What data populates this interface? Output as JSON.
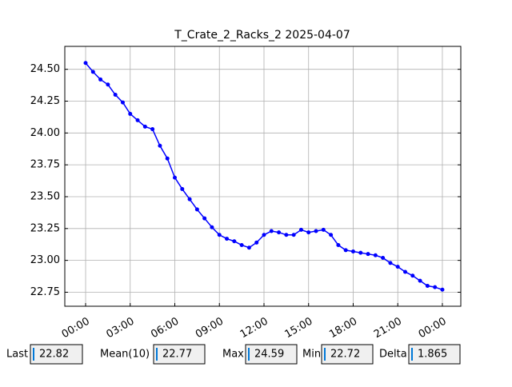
{
  "chart_data": {
    "type": "line",
    "title": "T_Crate_2_Racks_2 2025-04-07",
    "x": [
      0,
      0.5,
      1,
      1.5,
      2,
      2.5,
      3,
      3.5,
      4,
      4.5,
      5,
      5.5,
      6,
      6.5,
      7,
      7.5,
      8,
      8.5,
      9,
      9.5,
      10,
      10.5,
      11,
      11.5,
      12,
      12.5,
      13,
      13.5,
      14,
      14.5,
      15,
      15.5,
      16,
      16.5,
      17,
      17.5,
      18,
      18.5,
      19,
      19.5,
      20,
      20.5,
      21,
      21.5,
      22,
      22.5,
      23,
      23.5,
      24
    ],
    "series": [
      {
        "color": "#0000ff",
        "values": [
          24.55,
          24.48,
          24.42,
          24.38,
          24.3,
          24.24,
          24.15,
          24.1,
          24.05,
          24.03,
          23.9,
          23.8,
          23.65,
          23.56,
          23.48,
          23.4,
          23.33,
          23.26,
          23.2,
          23.17,
          23.15,
          23.12,
          23.1,
          23.14,
          23.2,
          23.23,
          23.22,
          23.2,
          23.2,
          23.24,
          23.22,
          23.23,
          23.24,
          23.2,
          23.12,
          23.08,
          23.07,
          23.06,
          23.05,
          23.04,
          23.02,
          22.98,
          22.95,
          22.91,
          22.88,
          22.84,
          22.8,
          22.79,
          22.77
        ]
      }
    ],
    "xlim": [
      -1.4,
      25.24
    ],
    "xticks": [
      {
        "value": 0,
        "label": "00:00"
      },
      {
        "value": 3,
        "label": "03:00"
      },
      {
        "value": 6,
        "label": "06:00"
      },
      {
        "value": 9,
        "label": "09:00"
      },
      {
        "value": 12,
        "label": "12:00"
      },
      {
        "value": 15,
        "label": "15:00"
      },
      {
        "value": 18,
        "label": "18:00"
      },
      {
        "value": 21,
        "label": "21:00"
      },
      {
        "value": 24,
        "label": "00:00"
      }
    ],
    "ylim": [
      22.64,
      24.68
    ],
    "yticks": [
      22.75,
      {
        "value": 23,
        "label": "23.00"
      },
      23.25,
      {
        "value": 23.5,
        "label": "23.50"
      },
      23.75,
      {
        "value": 24,
        "label": "24.00"
      },
      24.25,
      {
        "value": 24.5,
        "label": "24.50"
      }
    ],
    "grid": true
  },
  "stats": [
    {
      "label": "Last",
      "value": 22.82
    },
    {
      "label": "Mean(10)",
      "value": 22.77
    },
    {
      "label": "Max",
      "value": 24.59
    },
    {
      "label": "Min",
      "value": 22.72
    },
    {
      "label": "Delta",
      "value": 1.865
    }
  ]
}
